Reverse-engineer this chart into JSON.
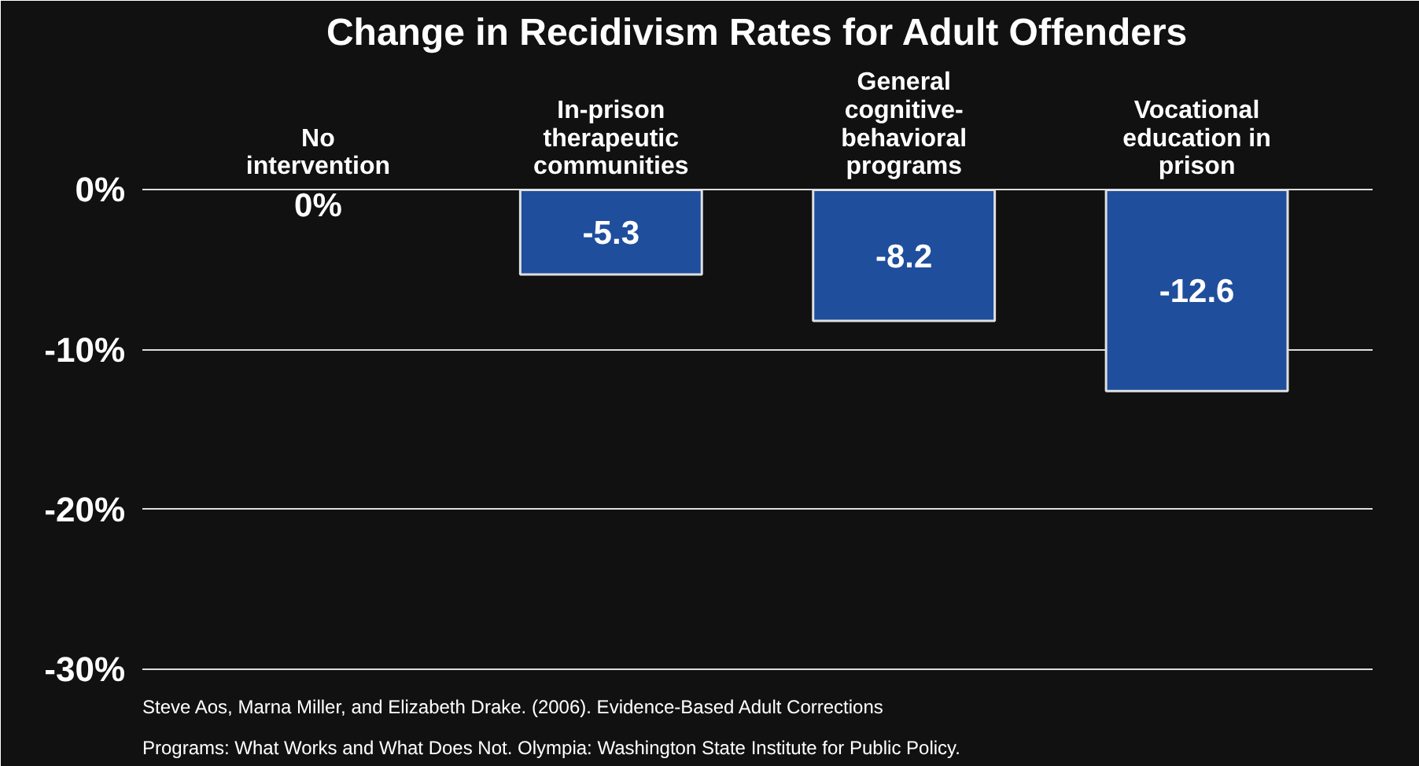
{
  "chart_data": {
    "type": "bar",
    "title": "Change in Recidivism Rates for Adult Offenders",
    "categories": [
      "No intervention",
      "In-prison therapeutic communities",
      "General cognitive-behavioral programs",
      "Vocational education in prison"
    ],
    "values": [
      0,
      -5.3,
      -8.2,
      -12.6
    ],
    "value_labels": [
      "0%",
      "-5.3",
      "-8.2",
      "-12.6"
    ],
    "color": "#1f4e9c",
    "ylim": [
      -31,
      8
    ],
    "yticks": [
      {
        "value": 0,
        "label": "0%"
      },
      {
        "value": -10,
        "label": "-10%"
      },
      {
        "value": -20,
        "label": "-20%"
      },
      {
        "value": -30,
        "label": "-30%"
      }
    ],
    "grid": "y",
    "annotations": [
      "Steve Aos, Marna Miller, and Elizabeth Drake. (2006). Evidence-Based Adult Corrections",
      "Programs: What Works and What Does Not. Olympia: Washington State Institute for Public Policy."
    ]
  }
}
